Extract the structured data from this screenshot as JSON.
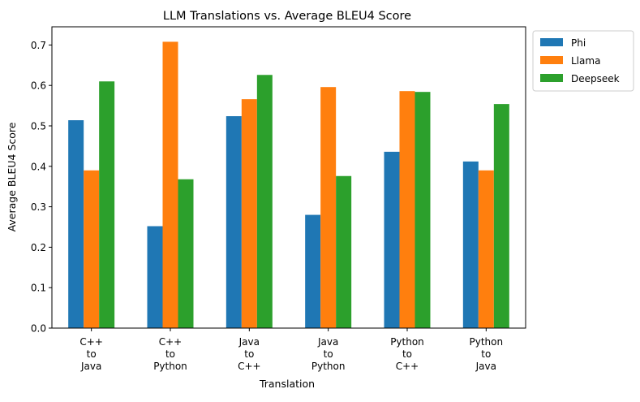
{
  "chart_data": {
    "type": "bar",
    "title": "LLM Translations vs. Average BLEU4 Score",
    "xlabel": "Translation",
    "ylabel": "Average BLEU4 Score",
    "ylim": [
      0,
      0.745
    ],
    "yticks": [
      0.0,
      0.1,
      0.2,
      0.3,
      0.4,
      0.5,
      0.6,
      0.7
    ],
    "ytick_labels": [
      "0.0",
      "0.1",
      "0.2",
      "0.3",
      "0.4",
      "0.5",
      "0.6",
      "0.7"
    ],
    "grid": false,
    "legend_position": "outside top-right",
    "categories": [
      [
        "C++",
        "to",
        "Java"
      ],
      [
        "C++",
        "to",
        "Python"
      ],
      [
        "Java",
        "to",
        "C++"
      ],
      [
        "Java",
        "to",
        "Python"
      ],
      [
        "Python",
        "to",
        "C++"
      ],
      [
        "Python",
        "to",
        "Java"
      ]
    ],
    "series": [
      {
        "name": "Phi",
        "color": "#1f77b4",
        "values": [
          0.514,
          0.252,
          0.524,
          0.28,
          0.436,
          0.412
        ]
      },
      {
        "name": "Llama",
        "color": "#ff7f0e",
        "values": [
          0.39,
          0.708,
          0.566,
          0.596,
          0.586,
          0.39
        ]
      },
      {
        "name": "Deepseek",
        "color": "#2ca02c",
        "values": [
          0.61,
          0.368,
          0.626,
          0.376,
          0.584,
          0.554
        ]
      }
    ]
  }
}
